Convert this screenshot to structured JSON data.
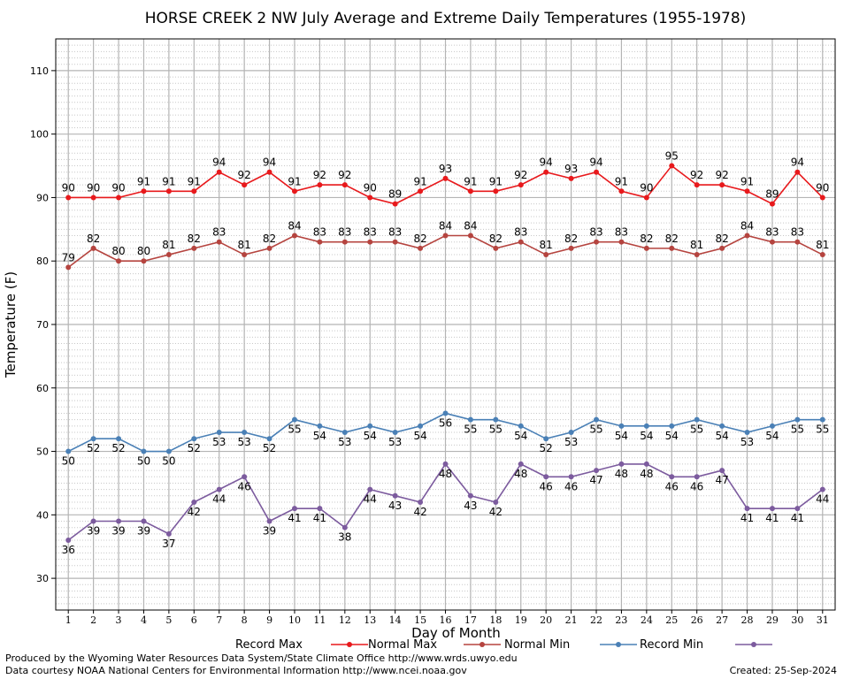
{
  "chart_data": {
    "type": "line",
    "title": "HORSE CREEK 2 NW July Average and Extreme Daily Temperatures (1955-1978)",
    "xlabel": "Day of Month",
    "ylabel": "Temperature (F)",
    "x": [
      1,
      2,
      3,
      4,
      5,
      6,
      7,
      8,
      9,
      10,
      11,
      12,
      13,
      14,
      15,
      16,
      17,
      18,
      19,
      20,
      21,
      22,
      23,
      24,
      25,
      26,
      27,
      28,
      29,
      30,
      31
    ],
    "xlim": [
      0.5,
      31.5
    ],
    "ylim": [
      25,
      115
    ],
    "yticks": [
      30,
      40,
      50,
      60,
      70,
      80,
      90,
      100,
      110
    ],
    "grid": true,
    "legend_position": "bottom",
    "series": [
      {
        "name": "Record Max",
        "color": "#e8191c",
        "values": [
          90,
          90,
          90,
          91,
          91,
          91,
          94,
          92,
          94,
          91,
          92,
          92,
          90,
          89,
          91,
          93,
          91,
          91,
          92,
          94,
          93,
          94,
          91,
          90,
          95,
          92,
          92,
          91,
          89,
          94,
          90
        ]
      },
      {
        "name": "Normal Max",
        "color": "#b5443f",
        "values": [
          79,
          82,
          80,
          80,
          81,
          82,
          83,
          81,
          82,
          84,
          83,
          83,
          83,
          83,
          82,
          84,
          84,
          82,
          83,
          81,
          82,
          83,
          83,
          82,
          82,
          81,
          82,
          84,
          83,
          83,
          81
        ]
      },
      {
        "name": "Normal Min",
        "color": "#4a80b6",
        "values": [
          50,
          52,
          52,
          50,
          50,
          52,
          53,
          53,
          52,
          55,
          54,
          53,
          54,
          53,
          54,
          56,
          55,
          55,
          54,
          52,
          53,
          55,
          54,
          54,
          54,
          55,
          54,
          53,
          54,
          55,
          55
        ]
      },
      {
        "name": "Record Min",
        "color": "#7c5b9e",
        "values": [
          36,
          39,
          39,
          39,
          37,
          42,
          44,
          46,
          39,
          41,
          41,
          38,
          44,
          43,
          42,
          48,
          43,
          42,
          48,
          46,
          46,
          47,
          48,
          48,
          46,
          46,
          47,
          41,
          41,
          41,
          44
        ]
      }
    ]
  },
  "footer": {
    "produced_by": "Produced by the Wyoming Water Resources Data System/State Climate Office http://www.wrds.uwyo.edu",
    "courtesy": "Data courtesy NOAA National Centers for Environmental Information http://www.ncei.noaa.gov",
    "created": "Created:  25-Sep-2024"
  }
}
